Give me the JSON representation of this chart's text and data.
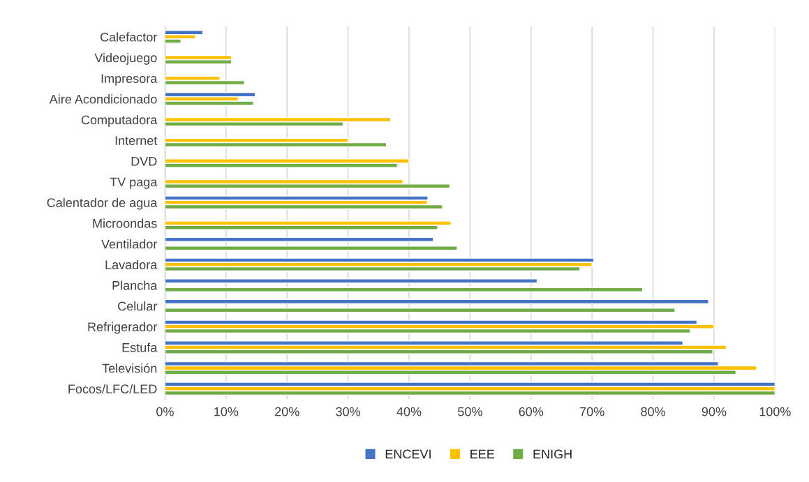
{
  "chart_data": {
    "type": "bar",
    "orientation": "horizontal",
    "categories": [
      "Calefactor",
      "Videojuego",
      "Impresora",
      "Aire Acondicionado",
      "Computadora",
      "Internet",
      "DVD",
      "TV paga",
      "Calentador de agua",
      "Microondas",
      "Ventilador",
      "Lavadora",
      "Plancha",
      "Celular",
      "Refrigerador",
      "Estufa",
      "Televisión",
      "Focos/LFC/LED"
    ],
    "series": [
      {
        "name": "ENCEVI",
        "color": "#4472c4",
        "values": [
          6.2,
          null,
          null,
          14.8,
          null,
          null,
          null,
          null,
          43.1,
          null,
          44.0,
          70.3,
          61.0,
          89.1,
          87.2,
          84.9,
          90.7,
          100
        ]
      },
      {
        "name": "EEE",
        "color": "#ffc000",
        "values": [
          5.0,
          10.9,
          9.0,
          12.0,
          37.0,
          30.0,
          40.0,
          39.0,
          43.0,
          46.9,
          null,
          70.0,
          null,
          null,
          90.0,
          92.0,
          97.0,
          100
        ]
      },
      {
        "name": "ENIGH",
        "color": "#70ad47",
        "values": [
          2.6,
          10.9,
          13.0,
          14.5,
          29.2,
          36.3,
          38.1,
          46.7,
          45.5,
          44.7,
          47.9,
          68.0,
          78.3,
          83.6,
          86.1,
          89.8,
          93.6,
          100
        ]
      }
    ],
    "xlim": [
      0,
      100
    ],
    "xticks": [
      {
        "value": 0,
        "label": "0%"
      },
      {
        "value": 10,
        "label": "10%"
      },
      {
        "value": 20,
        "label": "20%"
      },
      {
        "value": 30,
        "label": "30%"
      },
      {
        "value": 40,
        "label": "40%"
      },
      {
        "value": 50,
        "label": "50%"
      },
      {
        "value": 60,
        "label": "60%"
      },
      {
        "value": 70,
        "label": "70%"
      },
      {
        "value": 80,
        "label": "80%"
      },
      {
        "value": 90,
        "label": "90%"
      },
      {
        "value": 100,
        "label": "100%"
      }
    ],
    "grid": "x",
    "legend": "bottom"
  }
}
